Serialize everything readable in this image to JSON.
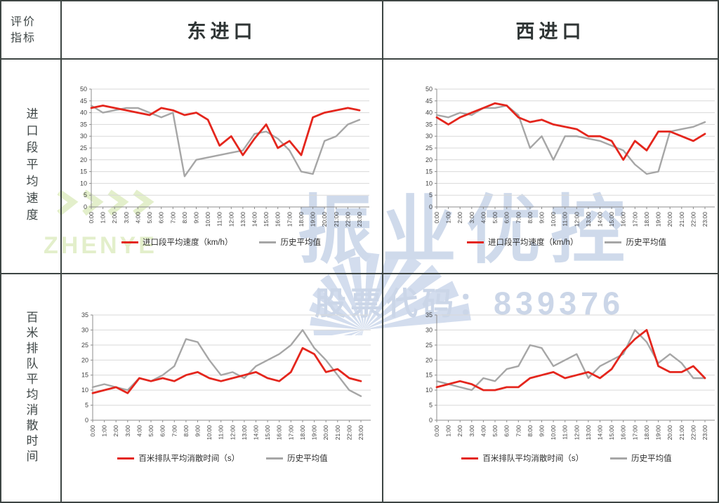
{
  "table": {
    "corner": "评价指标",
    "columns": [
      "东进口",
      "西进口"
    ],
    "rows": [
      "进口段平均速度",
      "百米排队平均消散时间"
    ]
  },
  "watermark": {
    "brand_en": "ZHENYE",
    "brand_cn": "振业优控",
    "stock_code_line": "股票代码：839376",
    "blue": "#cfdaeb",
    "green": "#e3efcb"
  },
  "colors": {
    "line_red": "#e4261d",
    "line_gray": "#a6a6a6",
    "grid": "#d9d9d9",
    "axis": "#8c8c8c",
    "border": "#3d4543"
  },
  "chart_data": [
    {
      "id": "east-entrance-speed",
      "type": "line",
      "group": {
        "column": "东进口",
        "row": "进口段平均速度"
      },
      "x_labels": [
        "0:00",
        "1:00",
        "2:00",
        "3:00",
        "4:00",
        "5:00",
        "6:00",
        "7:00",
        "8:00",
        "9:00",
        "10:00",
        "11:00",
        "12:00",
        "13:00",
        "14:00",
        "15:00",
        "16:00",
        "17:00",
        "18:00",
        "19:00",
        "20:00",
        "21:00",
        "22:00",
        "23:00"
      ],
      "ylim": [
        0,
        50
      ],
      "yticks": [
        0,
        5,
        10,
        15,
        20,
        25,
        30,
        35,
        40,
        45,
        50
      ],
      "grid": true,
      "legend_position": "bottom",
      "series": [
        {
          "name": "进口段平均速度（km/h）",
          "color": "#e4261d",
          "values": [
            42,
            43,
            42,
            41,
            40,
            39,
            42,
            41,
            39,
            40,
            37,
            26,
            30,
            22,
            29,
            35,
            25,
            28,
            22,
            38,
            40,
            41,
            42,
            41
          ]
        },
        {
          "name": "历史平均值",
          "color": "#a6a6a6",
          "values": [
            43,
            40,
            41,
            42,
            42,
            40,
            38,
            40,
            13,
            20,
            21,
            22,
            23,
            24,
            31,
            32,
            29,
            24,
            15,
            14,
            28,
            30,
            35,
            37
          ]
        }
      ]
    },
    {
      "id": "west-entrance-speed",
      "type": "line",
      "group": {
        "column": "西进口",
        "row": "进口段平均速度"
      },
      "x_labels": [
        "0:00",
        "1:00",
        "2:00",
        "3:00",
        "4:00",
        "5:00",
        "6:00",
        "7:00",
        "8:00",
        "9:00",
        "10:00",
        "11:00",
        "12:00",
        "13:00",
        "14:00",
        "15:00",
        "16:00",
        "17:00",
        "18:00",
        "19:00",
        "20:00",
        "21:00",
        "22:00",
        "23:00"
      ],
      "ylim": [
        0,
        50
      ],
      "yticks": [
        0,
        5,
        10,
        15,
        20,
        25,
        30,
        35,
        40,
        45,
        50
      ],
      "grid": true,
      "legend_position": "bottom",
      "series": [
        {
          "name": "进口段平均速度（km/h）",
          "color": "#e4261d",
          "values": [
            38,
            35,
            38,
            40,
            42,
            44,
            43,
            38,
            36,
            37,
            35,
            34,
            33,
            30,
            30,
            28,
            20,
            28,
            24,
            32,
            32,
            30,
            28,
            31
          ]
        },
        {
          "name": "历史平均值",
          "color": "#a6a6a6",
          "values": [
            39,
            38,
            40,
            39,
            42,
            42,
            43,
            39,
            25,
            30,
            20,
            30,
            30,
            29,
            28,
            26,
            24,
            18,
            14,
            15,
            32,
            33,
            34,
            36
          ]
        }
      ]
    },
    {
      "id": "east-entrance-queue-dissipation",
      "type": "line",
      "group": {
        "column": "东进口",
        "row": "百米排队平均消散时间"
      },
      "x_labels": [
        "0:00",
        "1:00",
        "2:00",
        "3:00",
        "4:00",
        "5:00",
        "6:00",
        "7:00",
        "8:00",
        "9:00",
        "10:00",
        "11:00",
        "12:00",
        "13:00",
        "14:00",
        "15:00",
        "16:00",
        "17:00",
        "18:00",
        "19:00",
        "20:00",
        "21:00",
        "22:00",
        "23:00"
      ],
      "ylim": [
        0,
        35
      ],
      "yticks": [
        0,
        5,
        10,
        15,
        20,
        25,
        30,
        35
      ],
      "grid": true,
      "legend_position": "bottom",
      "series": [
        {
          "name": "百米排队平均消散时间（s）",
          "color": "#e4261d",
          "values": [
            9,
            10,
            11,
            9,
            14,
            13,
            14,
            13,
            15,
            16,
            14,
            13,
            14,
            15,
            16,
            14,
            13,
            16,
            24,
            22,
            16,
            17,
            14,
            13
          ]
        },
        {
          "name": "历史平均值",
          "color": "#a6a6a6",
          "values": [
            11,
            12,
            11,
            10,
            14,
            13,
            15,
            18,
            27,
            26,
            20,
            15,
            16,
            14,
            18,
            20,
            22,
            25,
            30,
            24,
            20,
            15,
            10,
            8
          ]
        }
      ]
    },
    {
      "id": "west-entrance-queue-dissipation",
      "type": "line",
      "group": {
        "column": "西进口",
        "row": "百米排队平均消散时间"
      },
      "x_labels": [
        "0:00",
        "1:00",
        "2:00",
        "3:00",
        "4:00",
        "5:00",
        "6:00",
        "7:00",
        "8:00",
        "9:00",
        "10:00",
        "11:00",
        "12:00",
        "13:00",
        "14:00",
        "15:00",
        "16:00",
        "17:00",
        "18:00",
        "19:00",
        "20:00",
        "21:00",
        "22:00",
        "23:00"
      ],
      "ylim": [
        0,
        35
      ],
      "yticks": [
        0,
        5,
        10,
        15,
        20,
        25,
        30,
        35
      ],
      "grid": true,
      "legend_position": "bottom",
      "series": [
        {
          "name": "百米排队平均消散时间（s）",
          "color": "#e4261d",
          "values": [
            11,
            12,
            13,
            12,
            10,
            10,
            11,
            11,
            14,
            15,
            16,
            14,
            15,
            16,
            14,
            17,
            23,
            27,
            30,
            18,
            16,
            16,
            18,
            14
          ]
        },
        {
          "name": "历史平均值",
          "color": "#a6a6a6",
          "values": [
            13,
            12,
            11,
            10,
            14,
            13,
            17,
            18,
            25,
            24,
            18,
            20,
            22,
            14,
            18,
            20,
            22,
            30,
            26,
            19,
            22,
            19,
            14,
            14
          ]
        }
      ]
    }
  ]
}
